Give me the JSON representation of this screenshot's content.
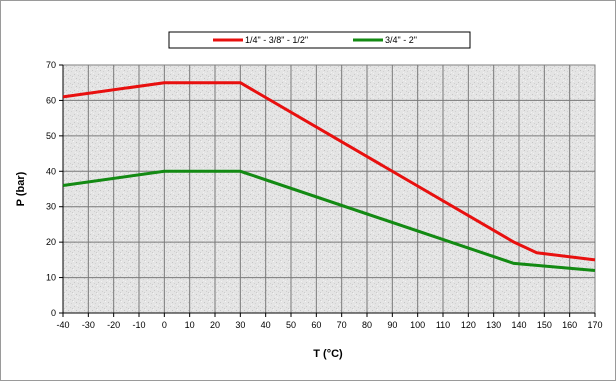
{
  "chart_data": {
    "type": "line",
    "title": "",
    "xlabel": "T (°C)",
    "ylabel": "P (bar)",
    "xlim": [
      -40,
      170
    ],
    "ylim": [
      0,
      70
    ],
    "xticks": [
      -40,
      -30,
      -20,
      -10,
      0,
      10,
      20,
      30,
      40,
      50,
      60,
      70,
      80,
      90,
      100,
      110,
      120,
      130,
      140,
      150,
      160,
      170
    ],
    "yticks": [
      0,
      10,
      20,
      30,
      40,
      50,
      60,
      70
    ],
    "grid": true,
    "legend_position": "top-center",
    "series": [
      {
        "name": "1/4\" - 3/8\" - 1/2\"",
        "color": "#e8100f",
        "x": [
          -40,
          0,
          30,
          138,
          147,
          170
        ],
        "y": [
          61,
          65,
          65,
          20,
          17,
          15
        ]
      },
      {
        "name": "3/4\" - 2\"",
        "color": "#138a13",
        "x": [
          -40,
          0,
          30,
          138,
          170
        ],
        "y": [
          36,
          40,
          40,
          14,
          12
        ]
      }
    ]
  }
}
